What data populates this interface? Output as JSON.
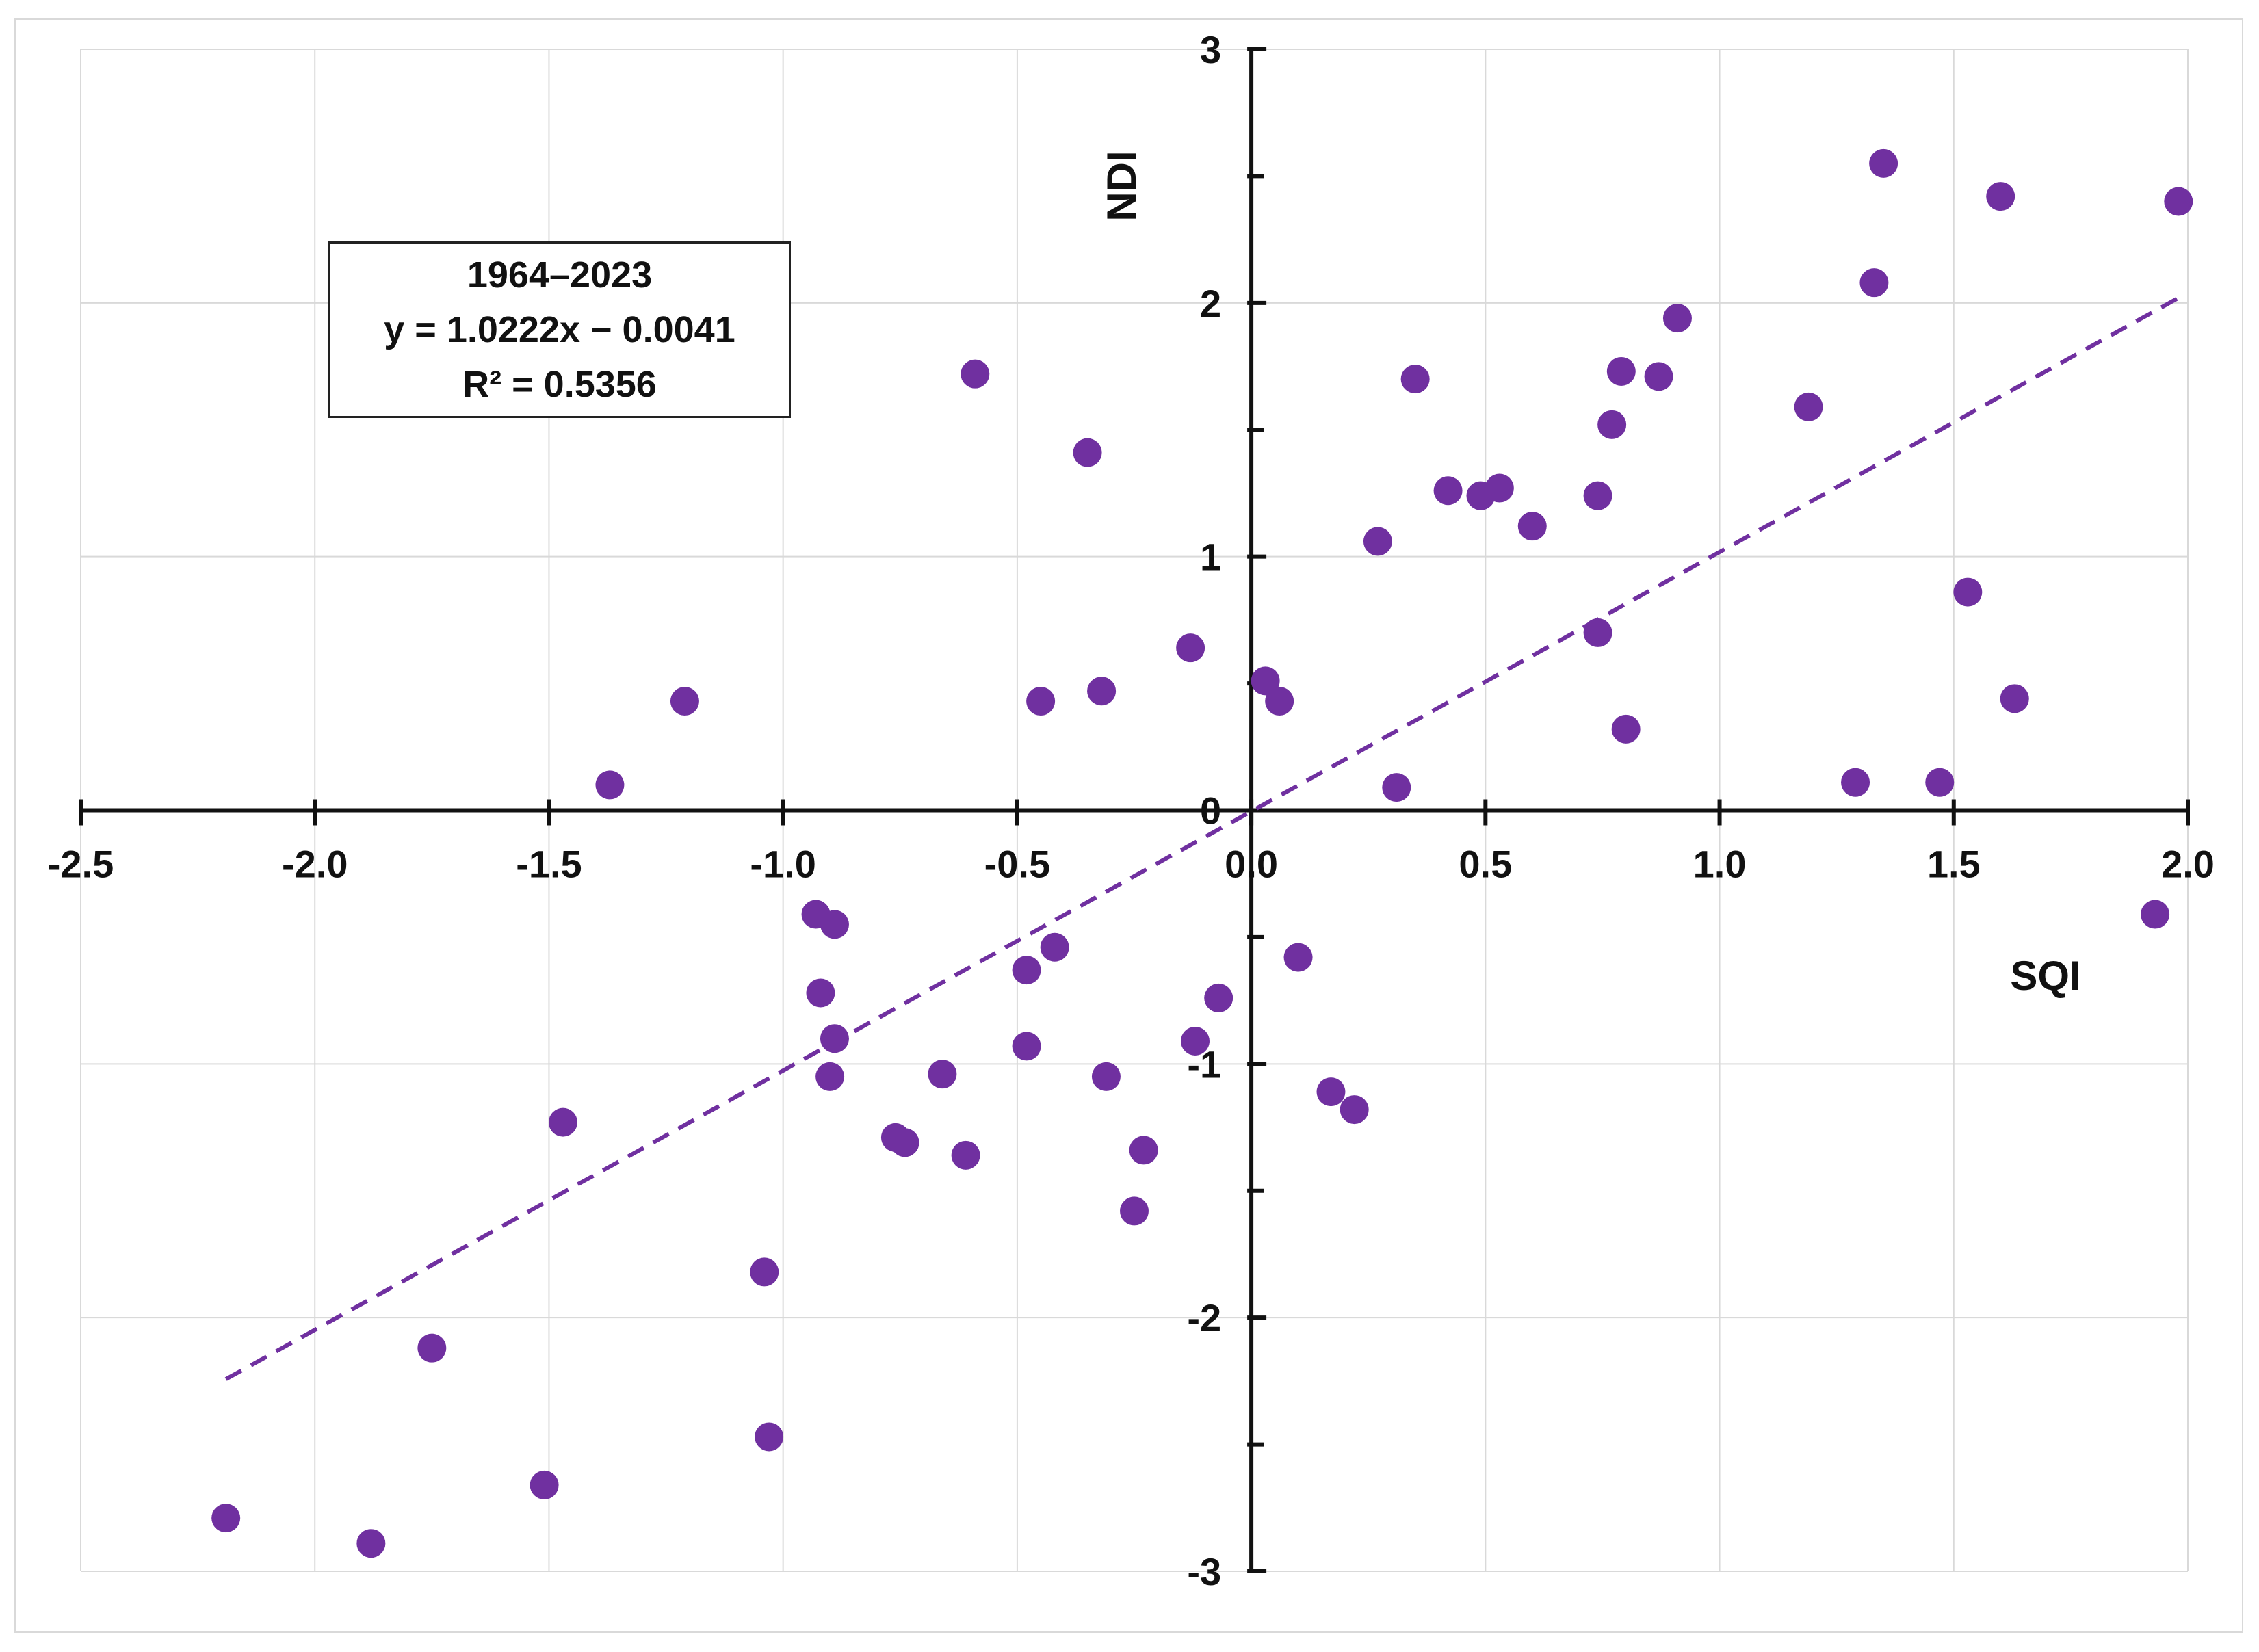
{
  "chart_data": {
    "type": "scatter",
    "title": "",
    "xlabel": "SQI",
    "ylabel": "NDI",
    "xlim": [
      -2.5,
      2.0
    ],
    "ylim": [
      -3,
      3
    ],
    "x_ticks": [
      "-2.5",
      "-2.0",
      "-1.5",
      "-1.0",
      "-0.5",
      "0.0",
      "0.5",
      "1.0",
      "1.5",
      "2.0"
    ],
    "y_ticks": [
      "-3",
      "-2",
      "-1",
      "0",
      "1",
      "2",
      "3"
    ],
    "grid": true,
    "point_color": "#7030A0",
    "trendline": {
      "slope": 1.0222,
      "intercept": -0.0041,
      "x_range": [
        -2.19,
        1.98
      ],
      "style": "dashed",
      "color": "#7030A0"
    },
    "annotation": {
      "period": "1964–2023",
      "equation": "y = 1.0222x − 0.0041",
      "r_squared": "R² = 0.5356"
    },
    "series": [
      {
        "name": "SQI vs NDI",
        "points": [
          [
            -2.19,
            -2.79
          ],
          [
            -1.88,
            -2.89
          ],
          [
            -1.75,
            -2.12
          ],
          [
            -1.51,
            -2.66
          ],
          [
            -1.47,
            -1.23
          ],
          [
            -1.37,
            0.1
          ],
          [
            -1.21,
            0.43
          ],
          [
            -1.04,
            -1.82
          ],
          [
            -1.03,
            -2.47
          ],
          [
            -0.93,
            -0.41
          ],
          [
            -0.92,
            -0.72
          ],
          [
            -0.9,
            -1.05
          ],
          [
            -0.89,
            -0.45
          ],
          [
            -0.89,
            -0.9
          ],
          [
            -0.76,
            -1.29
          ],
          [
            -0.74,
            -1.31
          ],
          [
            -0.66,
            -1.04
          ],
          [
            -0.61,
            -1.36
          ],
          [
            -0.59,
            1.72
          ],
          [
            -0.48,
            -0.63
          ],
          [
            -0.48,
            -0.93
          ],
          [
            -0.45,
            0.43
          ],
          [
            -0.42,
            -0.54
          ],
          [
            -0.35,
            1.41
          ],
          [
            -0.32,
            0.47
          ],
          [
            -0.31,
            -1.05
          ],
          [
            -0.25,
            -1.58
          ],
          [
            -0.23,
            -1.34
          ],
          [
            -0.13,
            0.64
          ],
          [
            -0.12,
            -0.91
          ],
          [
            -0.07,
            -0.74
          ],
          [
            0.03,
            0.51
          ],
          [
            0.06,
            0.43
          ],
          [
            0.1,
            -0.58
          ],
          [
            0.17,
            -1.11
          ],
          [
            0.22,
            -1.18
          ],
          [
            0.27,
            1.06
          ],
          [
            0.31,
            0.09
          ],
          [
            0.35,
            1.7
          ],
          [
            0.42,
            1.26
          ],
          [
            0.49,
            1.24
          ],
          [
            0.53,
            1.27
          ],
          [
            0.6,
            1.12
          ],
          [
            0.74,
            1.24
          ],
          [
            0.74,
            0.7
          ],
          [
            0.77,
            1.52
          ],
          [
            0.79,
            1.73
          ],
          [
            0.8,
            0.32
          ],
          [
            0.87,
            1.71
          ],
          [
            0.91,
            1.94
          ],
          [
            1.19,
            1.59
          ],
          [
            1.29,
            0.11
          ],
          [
            1.33,
            2.08
          ],
          [
            1.35,
            2.55
          ],
          [
            1.47,
            0.11
          ],
          [
            1.53,
            0.86
          ],
          [
            1.6,
            2.42
          ],
          [
            1.63,
            0.44
          ],
          [
            1.93,
            -0.41
          ],
          [
            1.98,
            2.4
          ]
        ]
      }
    ]
  }
}
